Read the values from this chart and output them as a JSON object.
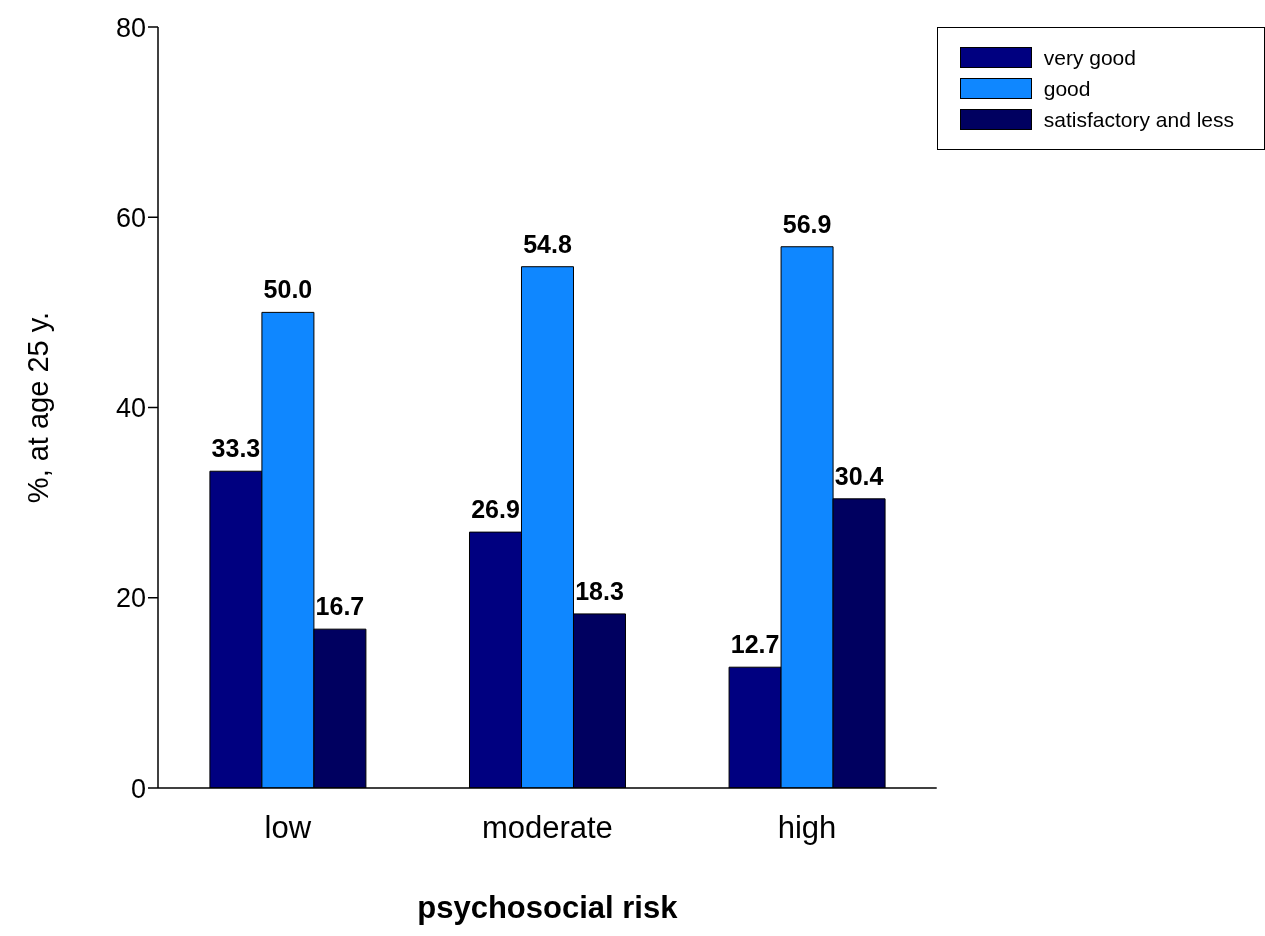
{
  "chart_data": {
    "type": "bar",
    "xlabel": "psychosocial risk",
    "ylabel": "%, at age 25 y.",
    "categories": [
      "low",
      "moderate",
      "high"
    ],
    "series": [
      {
        "name": "very good",
        "color": "#000080",
        "values": [
          33.3,
          26.9,
          12.7
        ],
        "value_labels": [
          "33.3",
          "26.9",
          "12.7"
        ]
      },
      {
        "name": "good",
        "color": "#0f87ff",
        "values": [
          50.0,
          54.8,
          56.9
        ],
        "value_labels": [
          "50.0",
          "54.8",
          "56.9"
        ]
      },
      {
        "name": "satisfactory and less",
        "color": "#000060",
        "values": [
          16.7,
          18.3,
          30.4
        ],
        "value_labels": [
          "16.7",
          "18.3",
          "30.4"
        ]
      }
    ],
    "ylim": [
      0,
      80
    ],
    "yticks": [
      0,
      20,
      40,
      60,
      80
    ],
    "grid": false,
    "legend": "top right"
  }
}
